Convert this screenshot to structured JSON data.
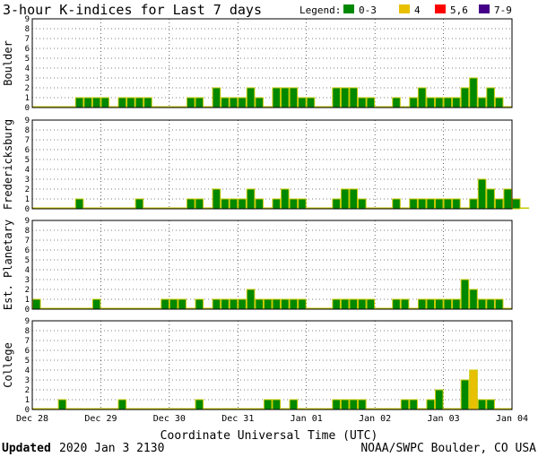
{
  "title": "3-hour K-indices for Last 7 days",
  "legend": {
    "label": "Legend:",
    "entries": [
      {
        "label": "0-3",
        "color": "#008800"
      },
      {
        "label": "4",
        "color": "#e8c000"
      },
      {
        "label": "5,6",
        "color": "#ff0000"
      },
      {
        "label": "7-9",
        "color": "#440088"
      }
    ]
  },
  "footer": {
    "updated_label": "Updated",
    "updated_value": "2020 Jan  3 2130",
    "source": "NOAA/SWPC Boulder, CO USA"
  },
  "chart_data": {
    "type": "bar",
    "title": "3-hour K-indices for Last 7 days",
    "xlabel": "Coordinate Universal Time (UTC)",
    "x_ticks": [
      "Dec 28",
      "Dec 29",
      "Dec 30",
      "Dec 31",
      "Jan 01",
      "Jan 02",
      "Jan 03",
      "Jan 04"
    ],
    "ylim": [
      0,
      9
    ],
    "y_ticks": [
      0,
      1,
      2,
      3,
      4,
      5,
      6,
      7,
      8,
      9
    ],
    "bins_per_day": 8,
    "grid": true,
    "series": [
      {
        "name": "Boulder",
        "values": [
          0,
          0,
          0,
          0,
          0,
          1,
          1,
          1,
          1,
          0,
          1,
          1,
          1,
          1,
          0,
          0,
          0,
          0,
          1,
          1,
          0,
          2,
          1,
          1,
          1,
          2,
          1,
          0,
          2,
          2,
          2,
          1,
          1,
          0,
          0,
          2,
          2,
          2,
          1,
          1,
          0,
          0,
          1,
          0,
          1,
          2,
          1,
          1,
          1,
          1,
          2,
          3,
          1,
          2,
          1,
          0
        ]
      },
      {
        "name": "Fredericksburg",
        "values": [
          0,
          0,
          0,
          0,
          0,
          1,
          0,
          0,
          0,
          0,
          0,
          0,
          1,
          0,
          0,
          0,
          0,
          0,
          1,
          1,
          0,
          2,
          1,
          1,
          1,
          2,
          1,
          0,
          1,
          2,
          1,
          1,
          0,
          0,
          0,
          1,
          2,
          2,
          1,
          0,
          0,
          0,
          1,
          0,
          1,
          1,
          1,
          1,
          1,
          1,
          0,
          1,
          3,
          2,
          1,
          2,
          1,
          0
        ]
      },
      {
        "name": "Est. Planetary",
        "values": [
          1,
          0,
          0,
          0,
          0,
          0,
          0,
          1,
          0,
          0,
          0,
          0,
          0,
          0,
          0,
          1,
          1,
          1,
          0,
          1,
          0,
          1,
          1,
          1,
          1,
          2,
          1,
          1,
          1,
          1,
          1,
          1,
          0,
          0,
          0,
          1,
          1,
          1,
          1,
          1,
          0,
          0,
          1,
          1,
          0,
          1,
          1,
          1,
          1,
          1,
          3,
          2,
          1,
          1,
          1,
          0
        ]
      },
      {
        "name": "College",
        "values": [
          0,
          0,
          0,
          1,
          0,
          0,
          0,
          0,
          0,
          0,
          1,
          0,
          0,
          0,
          0,
          0,
          0,
          0,
          0,
          1,
          0,
          0,
          0,
          0,
          0,
          0,
          0,
          1,
          1,
          0,
          1,
          0,
          0,
          0,
          0,
          1,
          1,
          1,
          1,
          0,
          0,
          0,
          0,
          1,
          1,
          0,
          1,
          2,
          0,
          0,
          3,
          4,
          1,
          1,
          0,
          0
        ]
      }
    ]
  }
}
